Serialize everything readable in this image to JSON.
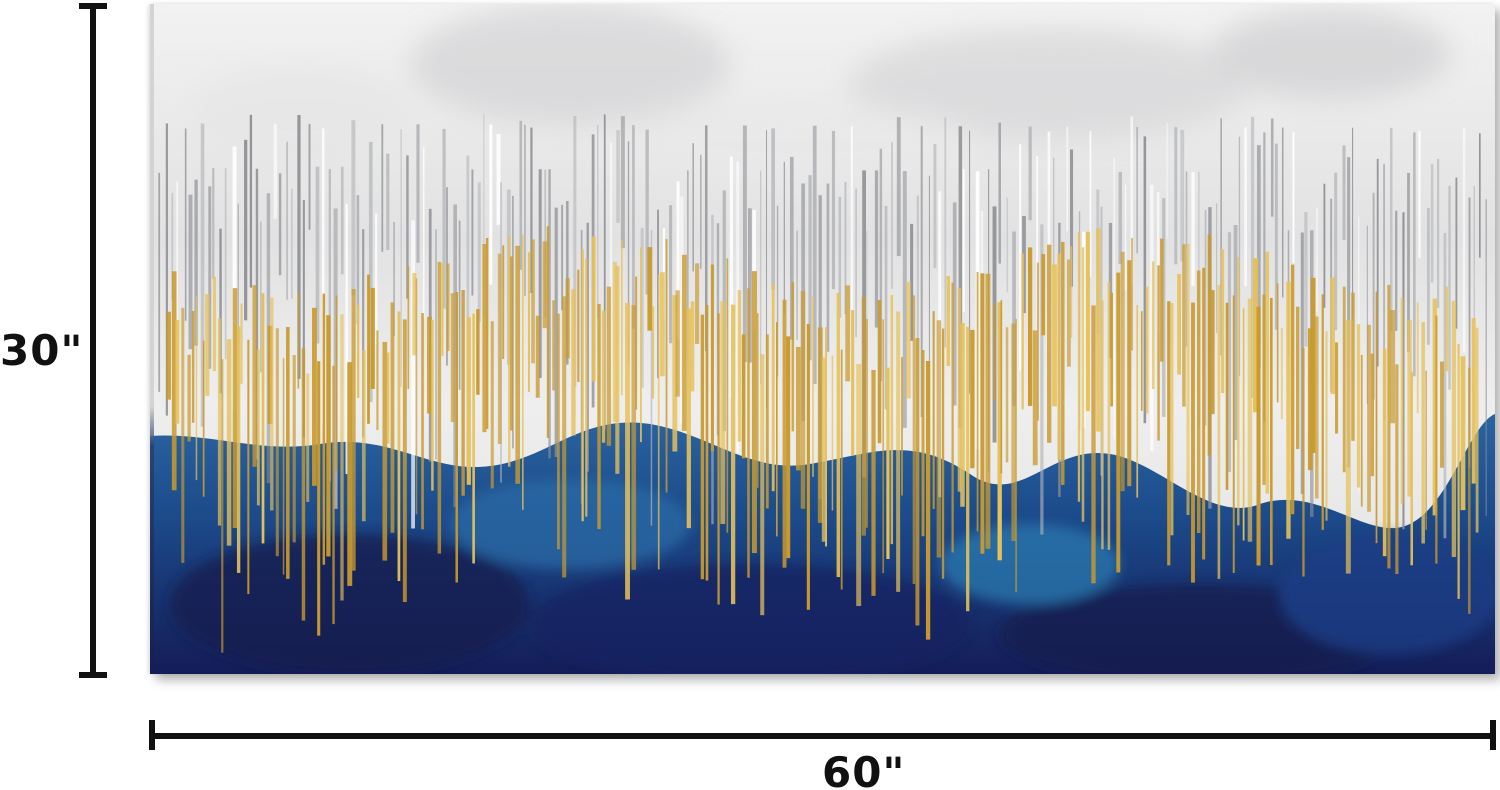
{
  "product": {
    "height_label": "30\"",
    "width_label": "60\""
  },
  "artwork": {
    "colors": {
      "sky_light": "#f4f4f4",
      "sky_grey": "#c9c9cb",
      "streak_grey": "#8e8f93",
      "gold": "#c99a2e",
      "gold_light": "#e6c15a",
      "navy": "#1b2a6b",
      "blue": "#1e5a92",
      "deep_navy": "#121a4e"
    }
  }
}
